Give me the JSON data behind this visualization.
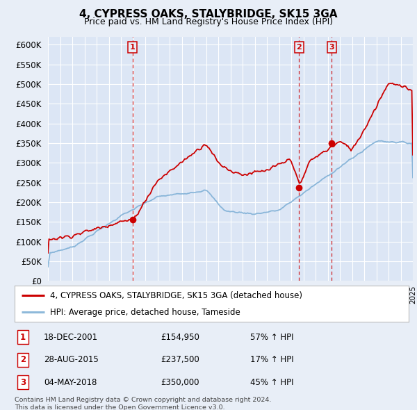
{
  "title": "4, CYPRESS OAKS, STALYBRIDGE, SK15 3GA",
  "subtitle": "Price paid vs. HM Land Registry's House Price Index (HPI)",
  "red_label": "4, CYPRESS OAKS, STALYBRIDGE, SK15 3GA (detached house)",
  "blue_label": "HPI: Average price, detached house, Tameside",
  "sale_events": [
    {
      "num": 1,
      "date": "18-DEC-2001",
      "price": "£154,950",
      "hpi": "57% ↑ HPI",
      "year": 2001.96,
      "price_val": 154950
    },
    {
      "num": 2,
      "date": "28-AUG-2015",
      "price": "£237,500",
      "hpi": "17% ↑ HPI",
      "year": 2015.65,
      "price_val": 237500
    },
    {
      "num": 3,
      "date": "04-MAY-2018",
      "price": "£350,000",
      "hpi": "45% ↑ HPI",
      "year": 2018.34,
      "price_val": 350000
    }
  ],
  "footnote1": "Contains HM Land Registry data © Crown copyright and database right 2024.",
  "footnote2": "This data is licensed under the Open Government Licence v3.0.",
  "ylim": [
    0,
    620000
  ],
  "yticks": [
    0,
    50000,
    100000,
    150000,
    200000,
    250000,
    300000,
    350000,
    400000,
    450000,
    500000,
    550000,
    600000
  ],
  "xlim": [
    1995,
    2025
  ],
  "bg_color": "#e8eef7",
  "plot_bg": "#dce6f5",
  "red_color": "#cc0000",
  "blue_color": "#7aadd4",
  "grid_color": "#ffffff",
  "dashed_color": "#cc0000"
}
